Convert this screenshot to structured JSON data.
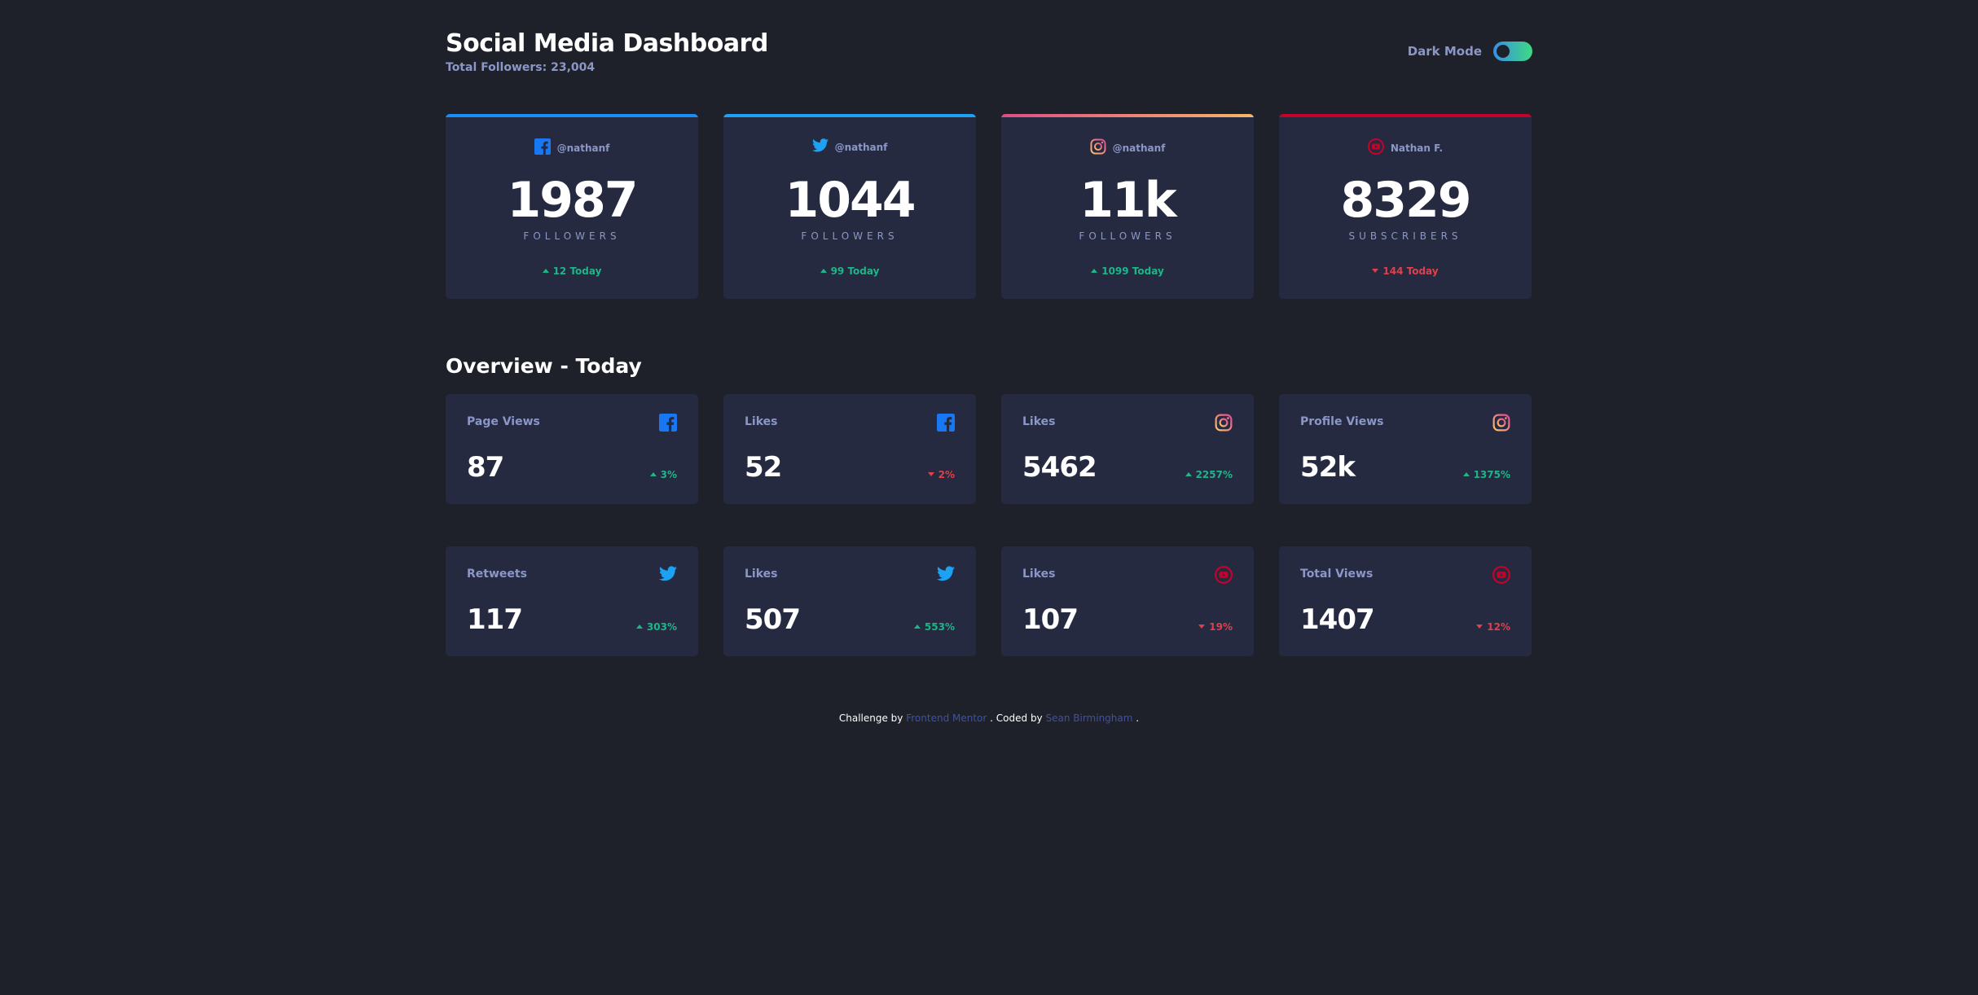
{
  "header": {
    "title": "Social Media Dashboard",
    "total_followers": "Total Followers: 23,004",
    "dark_mode_label": "Dark Mode",
    "dark_mode_on": true
  },
  "colors": {
    "background": "#1e202a",
    "card": "#252a41",
    "text_muted": "#8b97c6",
    "up": "#1eb589",
    "down": "#dc414c",
    "facebook": "#1877f2",
    "twitter": "#1da1f2",
    "instagram_gradient": [
      "#de4d86",
      "#f7b668"
    ],
    "youtube": "#c4032a"
  },
  "followers": [
    {
      "platform": "facebook",
      "icon": "facebook-icon",
      "handle": "@nathanf",
      "count": "1987",
      "unit": "FOLLOWERS",
      "change": "12 Today",
      "trend": "up"
    },
    {
      "platform": "twitter",
      "icon": "twitter-icon",
      "handle": "@nathanf",
      "count": "1044",
      "unit": "FOLLOWERS",
      "change": "99 Today",
      "trend": "up"
    },
    {
      "platform": "instagram",
      "icon": "instagram-icon",
      "handle": "@nathanf",
      "count": "11k",
      "unit": "FOLLOWERS",
      "change": "1099 Today",
      "trend": "up"
    },
    {
      "platform": "youtube",
      "icon": "youtube-icon",
      "handle": "Nathan F.",
      "count": "8329",
      "unit": "SUBSCRIBERS",
      "change": "144 Today",
      "trend": "down"
    }
  ],
  "overview": {
    "title": "Overview - Today",
    "cards": [
      {
        "label": "Page Views",
        "platform": "facebook",
        "value": "87",
        "change": "3%",
        "trend": "up"
      },
      {
        "label": "Likes",
        "platform": "facebook",
        "value": "52",
        "change": "2%",
        "trend": "down"
      },
      {
        "label": "Likes",
        "platform": "instagram",
        "value": "5462",
        "change": "2257%",
        "trend": "up"
      },
      {
        "label": "Profile Views",
        "platform": "instagram",
        "value": "52k",
        "change": "1375%",
        "trend": "up"
      },
      {
        "label": "Retweets",
        "platform": "twitter",
        "value": "117",
        "change": "303%",
        "trend": "up"
      },
      {
        "label": "Likes",
        "platform": "twitter",
        "value": "507",
        "change": "553%",
        "trend": "up"
      },
      {
        "label": "Likes",
        "platform": "youtube",
        "value": "107",
        "change": "19%",
        "trend": "down"
      },
      {
        "label": "Total Views",
        "platform": "youtube",
        "value": "1407",
        "change": "12%",
        "trend": "down"
      }
    ]
  },
  "footer": {
    "prefix": "Challenge by",
    "link1": "Frontend Mentor",
    "middle": ". Coded by",
    "link2": "Sean Birmingham",
    "suffix": "."
  }
}
